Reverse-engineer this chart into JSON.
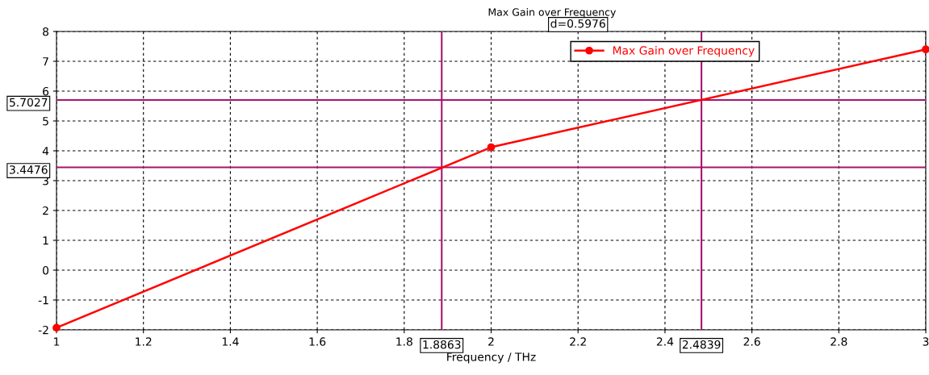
{
  "chart_data": {
    "type": "line",
    "title": "Max Gain over Frequency",
    "xlabel": "Frequency / THz",
    "x": [
      1,
      2,
      3
    ],
    "series": [
      {
        "name": "Max Gain over Frequency",
        "color": "#ff0000",
        "values": [
          -1.93,
          4.12,
          7.4
        ]
      }
    ],
    "xlim": [
      1,
      3
    ],
    "xticks": [
      1,
      1.2,
      1.4,
      1.6,
      1.8,
      2,
      2.2,
      2.4,
      2.6,
      2.8,
      3
    ],
    "ylim": [
      -2,
      8
    ],
    "yticks": [
      -2,
      -1,
      0,
      1,
      2,
      3,
      4,
      5,
      6,
      7,
      8
    ],
    "ref_lines": [
      {
        "axis": "x",
        "value": 1.8863,
        "label": "1.8863",
        "color": "#a8136f"
      },
      {
        "axis": "x",
        "value": 2.4839,
        "label": "2.4839",
        "color": "#a8136f"
      },
      {
        "axis": "y",
        "value": 5.7027,
        "label": "5.7027",
        "color": "#a8136f"
      },
      {
        "axis": "y",
        "value": 3.4476,
        "label": "3.4476",
        "color": "#a8136f"
      }
    ],
    "annotations": [
      "d=0.5976"
    ],
    "grid": true,
    "legend": "top",
    "marker": "circle",
    "line_style": "solid"
  }
}
